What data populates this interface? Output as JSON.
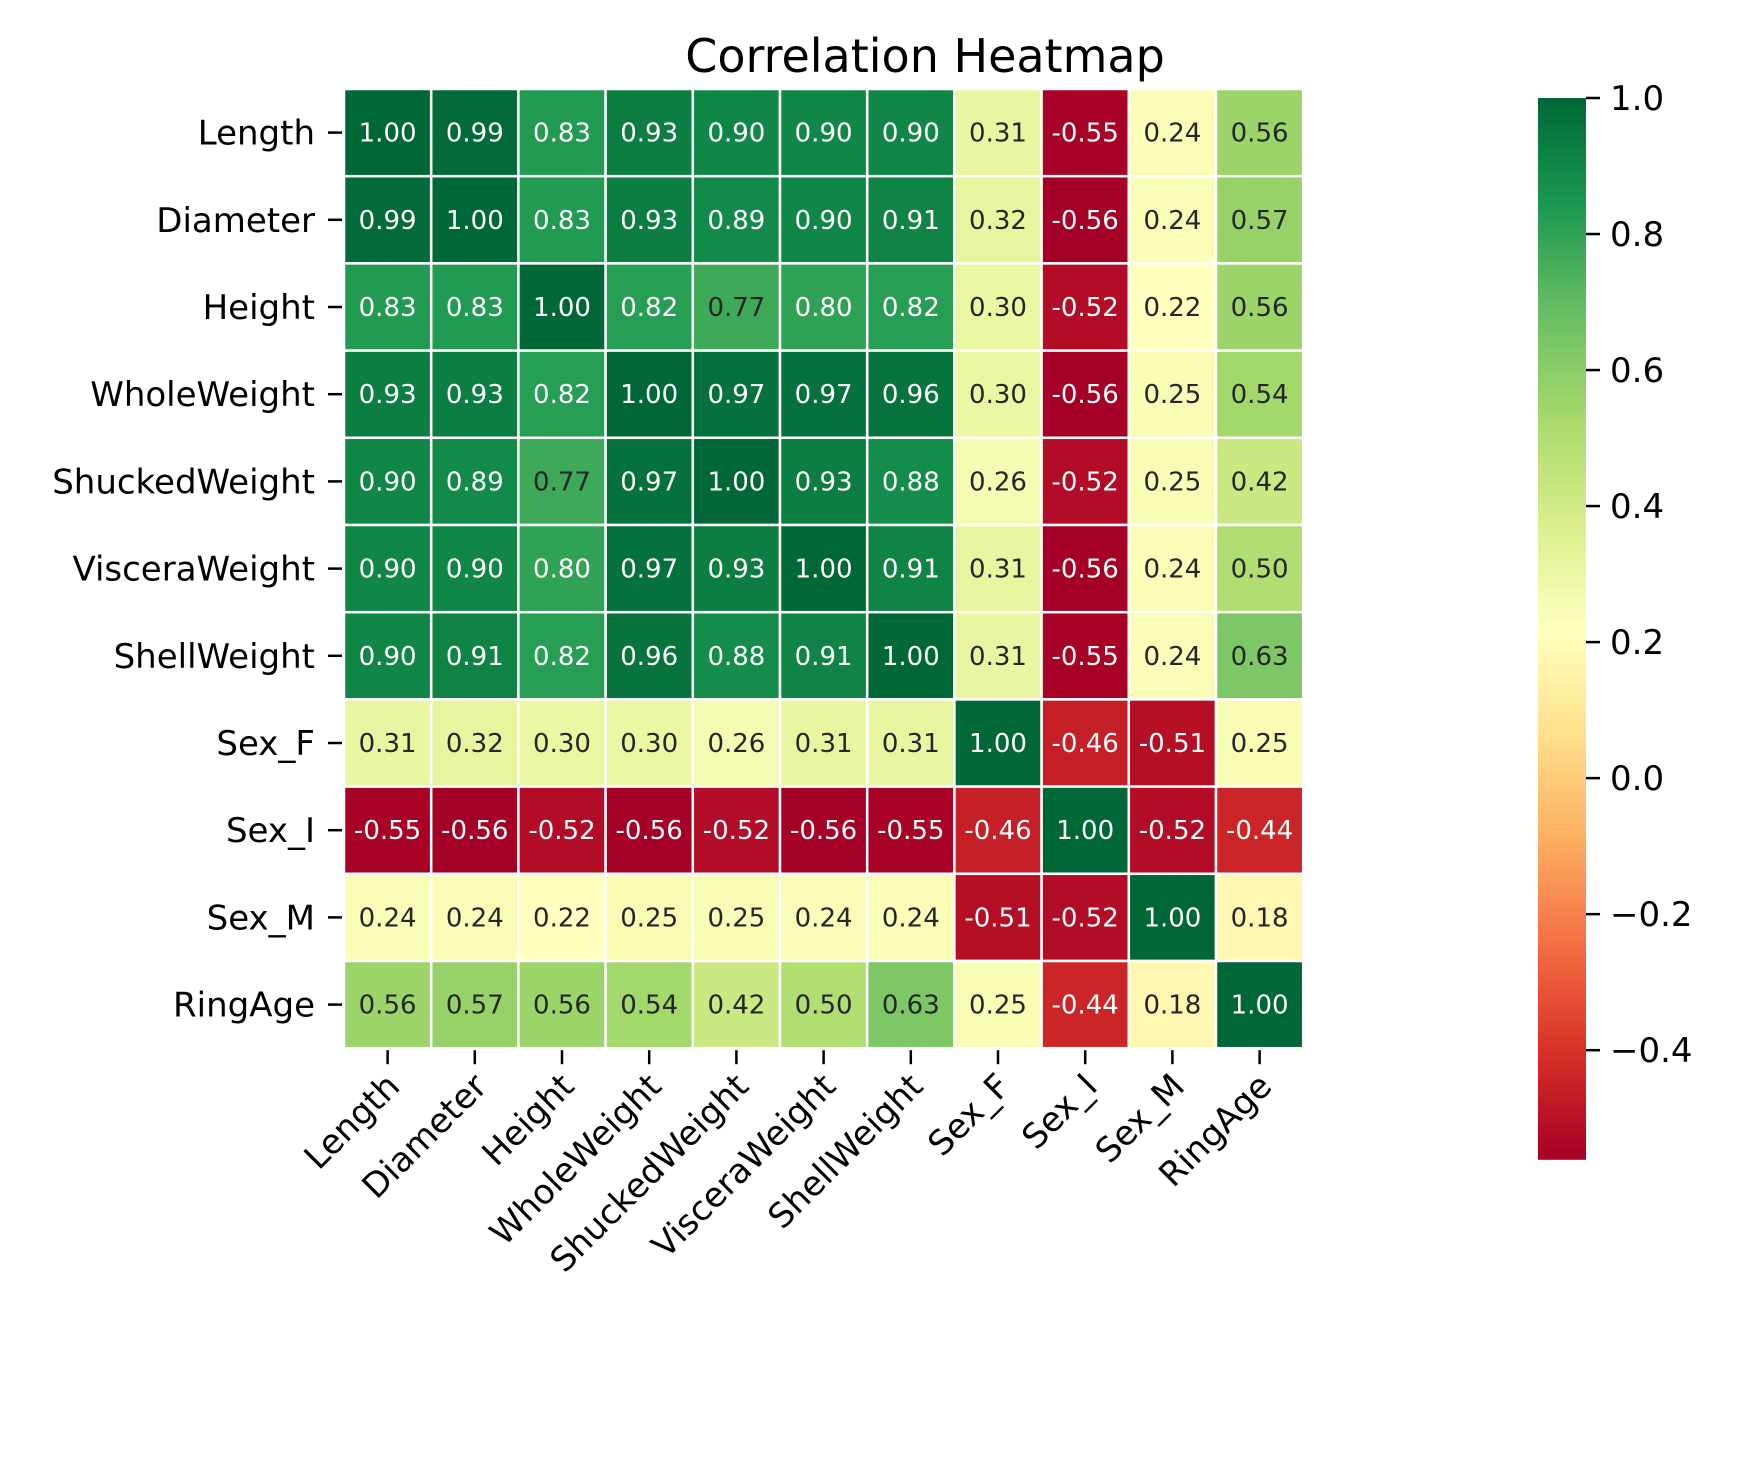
{
  "chart_data": {
    "type": "heatmap",
    "title": "Correlation Heatmap",
    "xlabel": "",
    "ylabel": "",
    "x_labels": [
      "Length",
      "Diameter",
      "Height",
      "WholeWeight",
      "ShuckedWeight",
      "VisceraWeight",
      "ShellWeight",
      "Sex_F",
      "Sex_I",
      "Sex_M",
      "RingAge"
    ],
    "y_labels": [
      "Length",
      "Diameter",
      "Height",
      "WholeWeight",
      "ShuckedWeight",
      "VisceraWeight",
      "ShellWeight",
      "Sex_F",
      "Sex_I",
      "Sex_M",
      "RingAge"
    ],
    "values": [
      [
        1.0,
        0.99,
        0.83,
        0.93,
        0.9,
        0.9,
        0.9,
        0.31,
        -0.55,
        0.24,
        0.56
      ],
      [
        0.99,
        1.0,
        0.83,
        0.93,
        0.89,
        0.9,
        0.91,
        0.32,
        -0.56,
        0.24,
        0.57
      ],
      [
        0.83,
        0.83,
        1.0,
        0.82,
        0.77,
        0.8,
        0.82,
        0.3,
        -0.52,
        0.22,
        0.56
      ],
      [
        0.93,
        0.93,
        0.82,
        1.0,
        0.97,
        0.97,
        0.96,
        0.3,
        -0.56,
        0.25,
        0.54
      ],
      [
        0.9,
        0.89,
        0.77,
        0.97,
        1.0,
        0.93,
        0.88,
        0.26,
        -0.52,
        0.25,
        0.42
      ],
      [
        0.9,
        0.9,
        0.8,
        0.97,
        0.93,
        1.0,
        0.91,
        0.31,
        -0.56,
        0.24,
        0.5
      ],
      [
        0.9,
        0.91,
        0.82,
        0.96,
        0.88,
        0.91,
        1.0,
        0.31,
        -0.55,
        0.24,
        0.63
      ],
      [
        0.31,
        0.32,
        0.3,
        0.3,
        0.26,
        0.31,
        0.31,
        1.0,
        -0.46,
        -0.51,
        0.25
      ],
      [
        -0.55,
        -0.56,
        -0.52,
        -0.56,
        -0.52,
        -0.56,
        -0.55,
        -0.46,
        1.0,
        -0.52,
        -0.44
      ],
      [
        0.24,
        0.24,
        0.22,
        0.25,
        0.25,
        0.24,
        0.24,
        -0.51,
        -0.52,
        1.0,
        0.18
      ],
      [
        0.56,
        0.57,
        0.56,
        0.54,
        0.42,
        0.5,
        0.63,
        0.25,
        -0.44,
        0.18,
        1.0
      ]
    ],
    "value_format": "2 decimals",
    "colormap": "RdYlGn",
    "color_range": [
      -0.56,
      1.0
    ],
    "colorbar_ticks": [
      1.0,
      0.8,
      0.6,
      0.4,
      0.2,
      0.0,
      -0.2,
      -0.4
    ],
    "colorbar_tick_labels": [
      "1.0",
      "0.8",
      "0.6",
      "0.4",
      "0.2",
      "0.0",
      "−0.2",
      "−0.4"
    ],
    "cell_border_color": "#ffffff",
    "legend": "colorbar right"
  }
}
